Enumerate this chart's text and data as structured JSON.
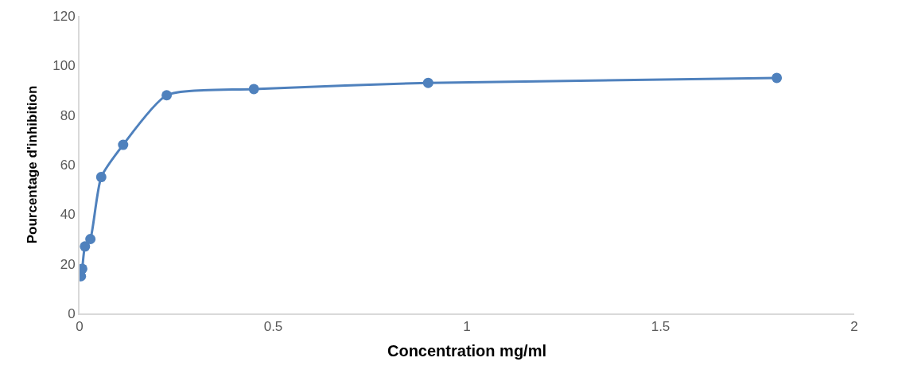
{
  "chart_data": {
    "type": "line",
    "xlabel": "Concentration mg/ml",
    "ylabel": "Pourcentage d'inhibition",
    "x": [
      0.0035,
      0.007,
      0.014,
      0.028,
      0.056,
      0.1125,
      0.225,
      0.45,
      0.9,
      1.8
    ],
    "series": [
      {
        "color": "#4f81bd",
        "values": [
          15,
          18,
          27,
          30,
          55,
          68,
          88,
          90.5,
          93,
          95
        ]
      }
    ],
    "xlim": [
      0,
      2
    ],
    "xticks": [
      0,
      0.5,
      1,
      1.5,
      2
    ],
    "ylim": [
      0,
      120
    ],
    "yticks": [
      0,
      20,
      40,
      60,
      80,
      100,
      120
    ],
    "legend": false,
    "marker": "circle",
    "line_style": "solid"
  }
}
